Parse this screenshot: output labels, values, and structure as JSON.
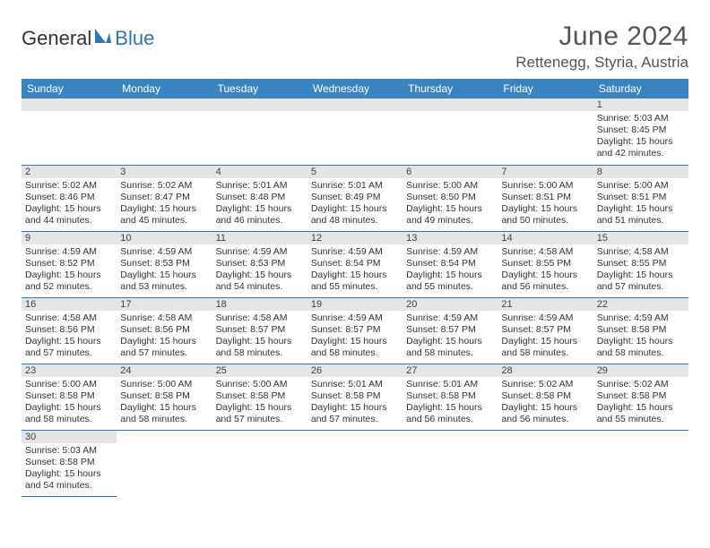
{
  "logo": {
    "general": "General",
    "blue": "Blue"
  },
  "title": "June 2024",
  "location": "Rettenegg, Styria, Austria",
  "weekdays": [
    "Sunday",
    "Monday",
    "Tuesday",
    "Wednesday",
    "Thursday",
    "Friday",
    "Saturday"
  ],
  "colors": {
    "header_bg": "#3a84c4",
    "rule": "#2d76b5",
    "daynum_bg": "#e5e5e5",
    "text": "#333333"
  },
  "weeks": [
    [
      null,
      null,
      null,
      null,
      null,
      null,
      {
        "n": "1",
        "sr": "Sunrise: 5:03 AM",
        "ss": "Sunset: 8:45 PM",
        "dl1": "Daylight: 15 hours",
        "dl2": "and 42 minutes."
      }
    ],
    [
      {
        "n": "2",
        "sr": "Sunrise: 5:02 AM",
        "ss": "Sunset: 8:46 PM",
        "dl1": "Daylight: 15 hours",
        "dl2": "and 44 minutes."
      },
      {
        "n": "3",
        "sr": "Sunrise: 5:02 AM",
        "ss": "Sunset: 8:47 PM",
        "dl1": "Daylight: 15 hours",
        "dl2": "and 45 minutes."
      },
      {
        "n": "4",
        "sr": "Sunrise: 5:01 AM",
        "ss": "Sunset: 8:48 PM",
        "dl1": "Daylight: 15 hours",
        "dl2": "and 46 minutes."
      },
      {
        "n": "5",
        "sr": "Sunrise: 5:01 AM",
        "ss": "Sunset: 8:49 PM",
        "dl1": "Daylight: 15 hours",
        "dl2": "and 48 minutes."
      },
      {
        "n": "6",
        "sr": "Sunrise: 5:00 AM",
        "ss": "Sunset: 8:50 PM",
        "dl1": "Daylight: 15 hours",
        "dl2": "and 49 minutes."
      },
      {
        "n": "7",
        "sr": "Sunrise: 5:00 AM",
        "ss": "Sunset: 8:51 PM",
        "dl1": "Daylight: 15 hours",
        "dl2": "and 50 minutes."
      },
      {
        "n": "8",
        "sr": "Sunrise: 5:00 AM",
        "ss": "Sunset: 8:51 PM",
        "dl1": "Daylight: 15 hours",
        "dl2": "and 51 minutes."
      }
    ],
    [
      {
        "n": "9",
        "sr": "Sunrise: 4:59 AM",
        "ss": "Sunset: 8:52 PM",
        "dl1": "Daylight: 15 hours",
        "dl2": "and 52 minutes."
      },
      {
        "n": "10",
        "sr": "Sunrise: 4:59 AM",
        "ss": "Sunset: 8:53 PM",
        "dl1": "Daylight: 15 hours",
        "dl2": "and 53 minutes."
      },
      {
        "n": "11",
        "sr": "Sunrise: 4:59 AM",
        "ss": "Sunset: 8:53 PM",
        "dl1": "Daylight: 15 hours",
        "dl2": "and 54 minutes."
      },
      {
        "n": "12",
        "sr": "Sunrise: 4:59 AM",
        "ss": "Sunset: 8:54 PM",
        "dl1": "Daylight: 15 hours",
        "dl2": "and 55 minutes."
      },
      {
        "n": "13",
        "sr": "Sunrise: 4:59 AM",
        "ss": "Sunset: 8:54 PM",
        "dl1": "Daylight: 15 hours",
        "dl2": "and 55 minutes."
      },
      {
        "n": "14",
        "sr": "Sunrise: 4:58 AM",
        "ss": "Sunset: 8:55 PM",
        "dl1": "Daylight: 15 hours",
        "dl2": "and 56 minutes."
      },
      {
        "n": "15",
        "sr": "Sunrise: 4:58 AM",
        "ss": "Sunset: 8:55 PM",
        "dl1": "Daylight: 15 hours",
        "dl2": "and 57 minutes."
      }
    ],
    [
      {
        "n": "16",
        "sr": "Sunrise: 4:58 AM",
        "ss": "Sunset: 8:56 PM",
        "dl1": "Daylight: 15 hours",
        "dl2": "and 57 minutes."
      },
      {
        "n": "17",
        "sr": "Sunrise: 4:58 AM",
        "ss": "Sunset: 8:56 PM",
        "dl1": "Daylight: 15 hours",
        "dl2": "and 57 minutes."
      },
      {
        "n": "18",
        "sr": "Sunrise: 4:58 AM",
        "ss": "Sunset: 8:57 PM",
        "dl1": "Daylight: 15 hours",
        "dl2": "and 58 minutes."
      },
      {
        "n": "19",
        "sr": "Sunrise: 4:59 AM",
        "ss": "Sunset: 8:57 PM",
        "dl1": "Daylight: 15 hours",
        "dl2": "and 58 minutes."
      },
      {
        "n": "20",
        "sr": "Sunrise: 4:59 AM",
        "ss": "Sunset: 8:57 PM",
        "dl1": "Daylight: 15 hours",
        "dl2": "and 58 minutes."
      },
      {
        "n": "21",
        "sr": "Sunrise: 4:59 AM",
        "ss": "Sunset: 8:57 PM",
        "dl1": "Daylight: 15 hours",
        "dl2": "and 58 minutes."
      },
      {
        "n": "22",
        "sr": "Sunrise: 4:59 AM",
        "ss": "Sunset: 8:58 PM",
        "dl1": "Daylight: 15 hours",
        "dl2": "and 58 minutes."
      }
    ],
    [
      {
        "n": "23",
        "sr": "Sunrise: 5:00 AM",
        "ss": "Sunset: 8:58 PM",
        "dl1": "Daylight: 15 hours",
        "dl2": "and 58 minutes."
      },
      {
        "n": "24",
        "sr": "Sunrise: 5:00 AM",
        "ss": "Sunset: 8:58 PM",
        "dl1": "Daylight: 15 hours",
        "dl2": "and 58 minutes."
      },
      {
        "n": "25",
        "sr": "Sunrise: 5:00 AM",
        "ss": "Sunset: 8:58 PM",
        "dl1": "Daylight: 15 hours",
        "dl2": "and 57 minutes."
      },
      {
        "n": "26",
        "sr": "Sunrise: 5:01 AM",
        "ss": "Sunset: 8:58 PM",
        "dl1": "Daylight: 15 hours",
        "dl2": "and 57 minutes."
      },
      {
        "n": "27",
        "sr": "Sunrise: 5:01 AM",
        "ss": "Sunset: 8:58 PM",
        "dl1": "Daylight: 15 hours",
        "dl2": "and 56 minutes."
      },
      {
        "n": "28",
        "sr": "Sunrise: 5:02 AM",
        "ss": "Sunset: 8:58 PM",
        "dl1": "Daylight: 15 hours",
        "dl2": "and 56 minutes."
      },
      {
        "n": "29",
        "sr": "Sunrise: 5:02 AM",
        "ss": "Sunset: 8:58 PM",
        "dl1": "Daylight: 15 hours",
        "dl2": "and 55 minutes."
      }
    ],
    [
      {
        "n": "30",
        "sr": "Sunrise: 5:03 AM",
        "ss": "Sunset: 8:58 PM",
        "dl1": "Daylight: 15 hours",
        "dl2": "and 54 minutes."
      },
      null,
      null,
      null,
      null,
      null,
      null
    ]
  ]
}
